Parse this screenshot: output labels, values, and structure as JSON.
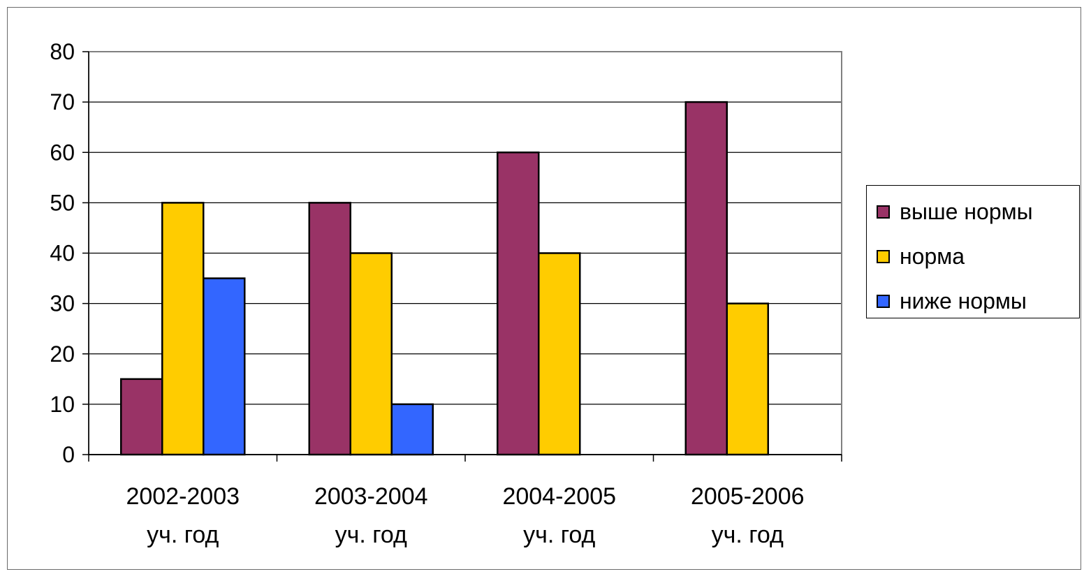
{
  "chart_data": {
    "type": "bar",
    "categories": [
      [
        "2002-2003",
        "уч. год"
      ],
      [
        "2003-2004",
        "уч. год"
      ],
      [
        "2004-2005",
        "уч. год"
      ],
      [
        "2005-2006",
        "уч. год"
      ]
    ],
    "series": [
      {
        "name": "выше нормы",
        "color": "#993366",
        "values": [
          15,
          50,
          60,
          70
        ]
      },
      {
        "name": "норма",
        "color": "#ffcc00",
        "values": [
          50,
          40,
          40,
          30
        ]
      },
      {
        "name": "ниже нормы",
        "color": "#3366ff",
        "values": [
          35,
          10,
          0,
          0
        ]
      }
    ],
    "ylim": [
      0,
      80
    ],
    "yticks": [
      0,
      10,
      20,
      30,
      40,
      50,
      60,
      70,
      80
    ],
    "grid": true,
    "legend_position": "right"
  }
}
